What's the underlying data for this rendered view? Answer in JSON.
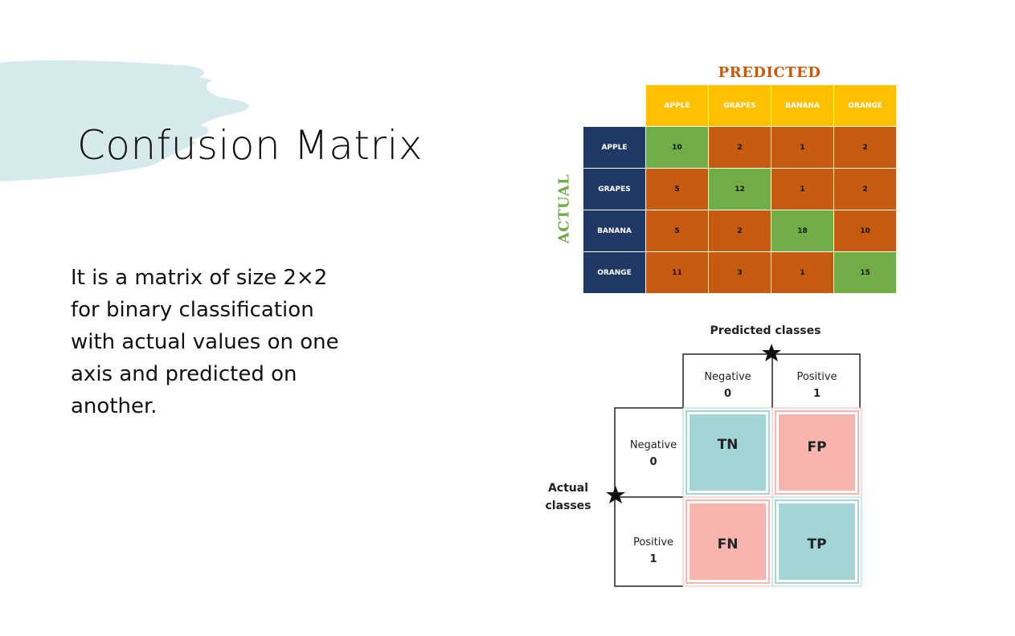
{
  "slide": {
    "title": "Confusion Matrix",
    "description": "It is a matrix of size 2×2 for binary classification with actual values on one axis and predicted on another."
  },
  "multiclass": {
    "predicted_label": "PREDICTED",
    "actual_label": "ACTUAL",
    "classes": [
      "APPLE",
      "GRAPES",
      "BANANA",
      "ORANGE"
    ],
    "matrix": [
      [
        10,
        2,
        1,
        2
      ],
      [
        5,
        12,
        1,
        2
      ],
      [
        5,
        2,
        18,
        10
      ],
      [
        11,
        3,
        1,
        15
      ]
    ],
    "colors": {
      "header": "#ffc000",
      "row_header": "#203864",
      "correct": "#70ad47",
      "wrong": "#c55a11"
    }
  },
  "binary": {
    "predicted_title": "Predicted classes",
    "actual_title_line1": "Actual",
    "actual_title_line2": "classes",
    "col_neg_label": "Negative",
    "col_neg_value": "0",
    "col_pos_label": "Positive",
    "col_pos_value": "1",
    "row_neg_label": "Negative",
    "row_neg_value": "0",
    "row_pos_label": "Positive",
    "row_pos_value": "1",
    "tn": "TN",
    "fp": "FP",
    "fn": "FN",
    "tp": "TP",
    "colors": {
      "true": "#a3d5d6",
      "false": "#f9b5ad"
    }
  }
}
